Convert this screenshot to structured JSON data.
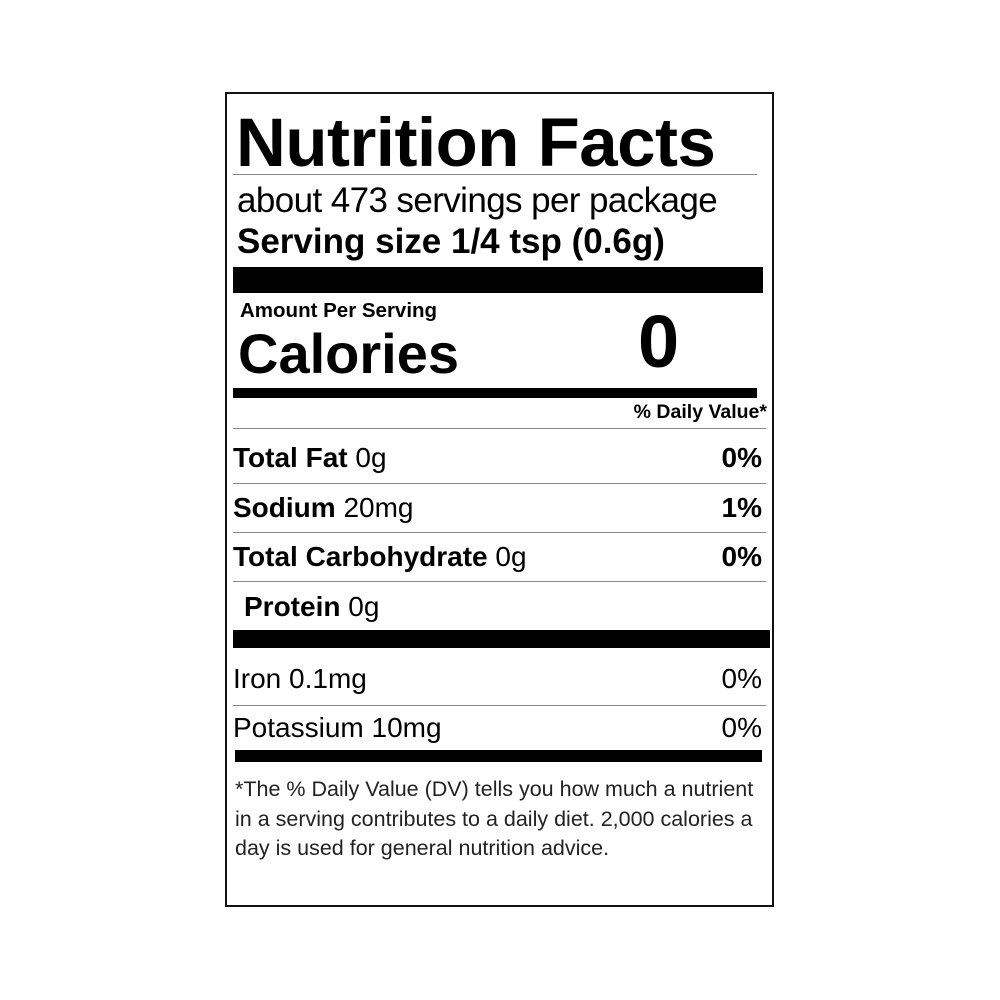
{
  "label": {
    "title": "Nutrition Facts",
    "servings_per_package": "about 473 servings per package",
    "serving_size": "Serving size 1/4 tsp (0.6g)",
    "amount_per_serving": "Amount Per Serving",
    "calories_label": "Calories",
    "calories_value": "0",
    "daily_value_header": "% Daily Value*",
    "nutrients": [
      {
        "name": "Total Fat",
        "amount": "0g",
        "dv": "0%"
      },
      {
        "name": "Sodium",
        "amount": "20mg",
        "dv": "1%"
      },
      {
        "name": "Total Carbohydrate",
        "amount": "0g",
        "dv": "0%"
      },
      {
        "name": "Protein",
        "amount": "0g"
      }
    ],
    "micronutrients": [
      {
        "name": "Iron 0.1mg",
        "dv": "0%"
      },
      {
        "name": "Potassium 10mg",
        "dv": "0%"
      }
    ],
    "footnote": "*The % Daily Value (DV) tells you how much a nutrient in a serving contributes to a daily diet. 2,000 calories a day is used for general nutrition advice."
  }
}
